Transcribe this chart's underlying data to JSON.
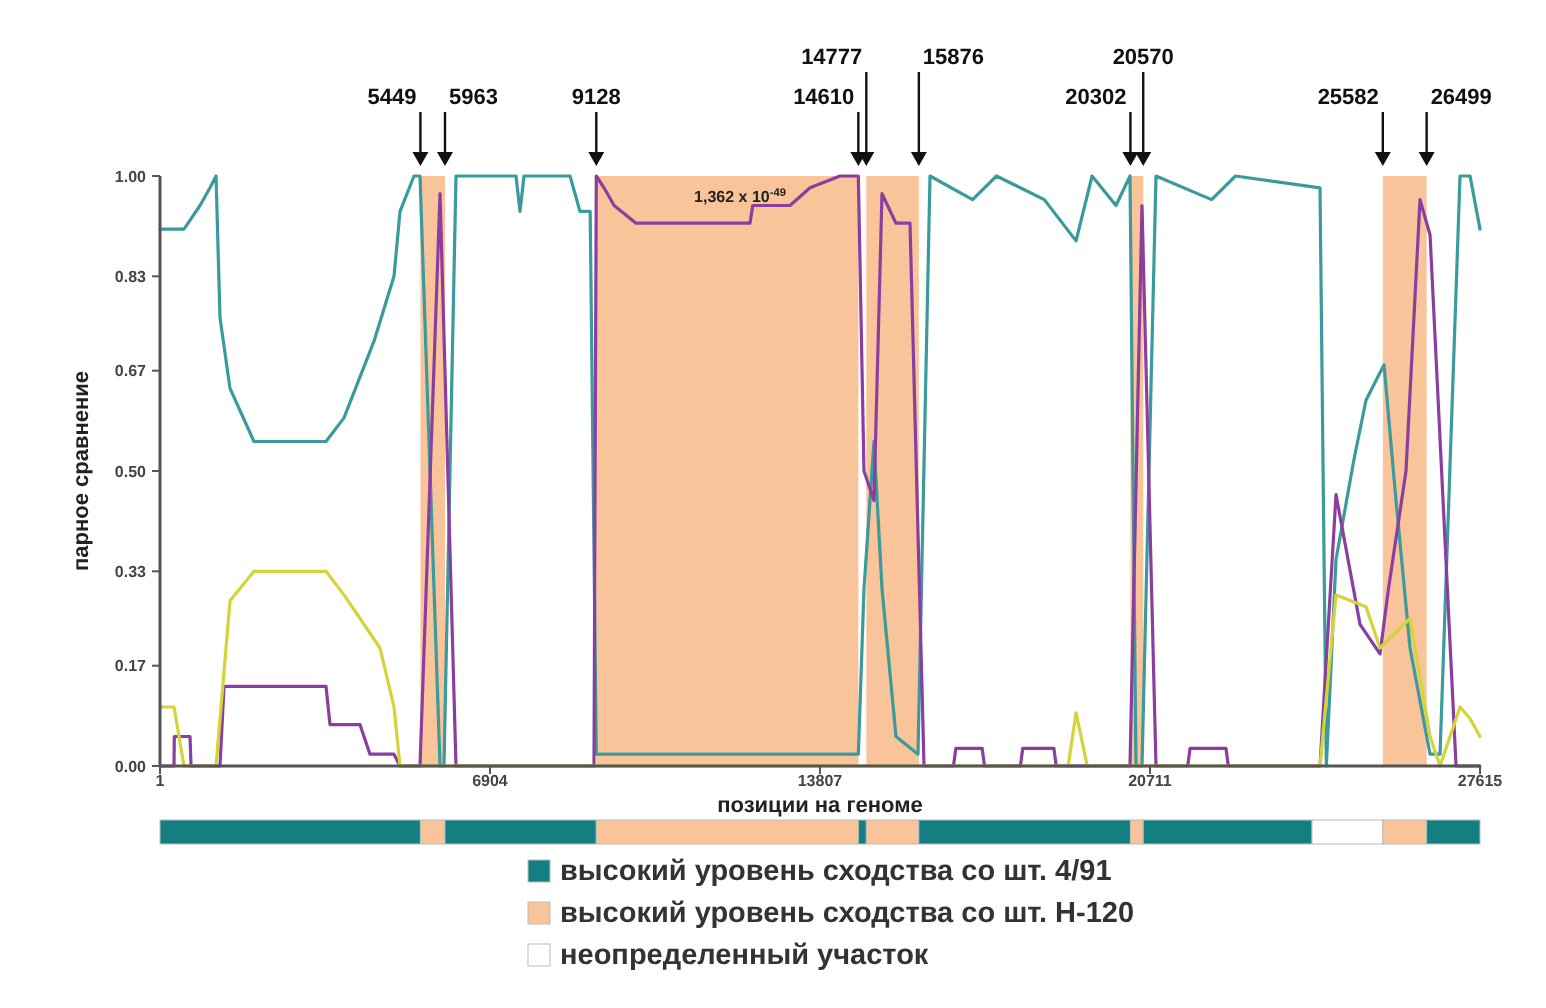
{
  "chart_data": [
    {
      "type": "line",
      "xlabel": "позиции на геноме",
      "ylabel": "парное сравнение",
      "xlim": [
        1,
        27615
      ],
      "xticks": [
        1,
        6904,
        13807,
        20711,
        27615
      ],
      "ylim": [
        0,
        1
      ],
      "yticks": [
        {
          "value": 0,
          "label": "0.00"
        },
        0.17,
        0.33,
        {
          "value": 0.5,
          "label": "0.50"
        },
        0.67,
        0.83,
        {
          "value": 1,
          "label": "1.00"
        }
      ],
      "series": [
        {
          "color": "#3a9a9c",
          "x": [
            1,
            503,
            838,
            1047,
            1173,
            1256,
            1465,
            1967,
            3474,
            3850,
            4478,
            4896,
            5022,
            5315,
            5440,
            5859,
            5942,
            6193,
            7448,
            7532,
            7616,
            8578,
            8787,
            9000,
            9128,
            12344,
            14610,
            14728,
            14937,
            15105,
            15398,
            15858,
            16109,
            17000,
            17500,
            18500,
            19164,
            19500,
            20000,
            20293,
            20418,
            20544,
            20837,
            22000,
            22500,
            24268,
            24400,
            24603,
            24979,
            25230,
            25607,
            25858,
            26151,
            26570,
            26779,
            27197,
            27407,
            27615
          ],
          "values": [
            0.91,
            0.91,
            0.95,
            0.98,
            1.0,
            0.76,
            0.64,
            0.55,
            0.55,
            0.59,
            0.72,
            0.83,
            0.94,
            1.0,
            1.0,
            0.0,
            0.0,
            1.0,
            1.0,
            0.94,
            1.0,
            1.0,
            0.94,
            0.94,
            0.02,
            0.02,
            0.02,
            0.3,
            0.55,
            0.3,
            0.05,
            0.02,
            1.0,
            0.96,
            1.0,
            0.96,
            0.89,
            1.0,
            0.95,
            1.0,
            0.0,
            0.0,
            1.0,
            0.96,
            1.0,
            0.98,
            0.0,
            0.35,
            0.52,
            0.62,
            0.68,
            0.45,
            0.2,
            0.02,
            0.02,
            1.0,
            1.0,
            0.91
          ]
        },
        {
          "color": "#8a3fa0",
          "x": [
            1,
            294,
            300,
            629,
            650,
            1256,
            1340,
            3474,
            3557,
            4185,
            4394,
            4896,
            5022,
            5440,
            5859,
            6193,
            9080,
            9128,
            9290,
            9500,
            9960,
            12344,
            12400,
            13181,
            13600,
            14227,
            14610,
            14728,
            14937,
            15105,
            15398,
            15691,
            15984,
            16600,
            16650,
            17200,
            17250,
            18000,
            18050,
            18700,
            18750,
            20293,
            20544,
            20837,
            21500,
            21550,
            22300,
            22350,
            24268,
            24603,
            25105,
            25523,
            25700,
            26067,
            26360,
            26570,
            27114,
            27615
          ],
          "values": [
            0,
            0,
            0.05,
            0.05,
            0,
            0,
            0.135,
            0.135,
            0.07,
            0.07,
            0.02,
            0.02,
            0,
            0,
            0.97,
            0,
            0,
            1.0,
            0.98,
            0.95,
            0.92,
            0.92,
            0.95,
            0.95,
            0.98,
            1.0,
            1.0,
            0.5,
            0.45,
            0.97,
            0.92,
            0.92,
            0,
            0,
            0.03,
            0.03,
            0,
            0,
            0.03,
            0.03,
            0,
            0,
            0.95,
            0,
            0,
            0.03,
            0.03,
            0,
            0,
            0.46,
            0.24,
            0.19,
            0.3,
            0.5,
            0.96,
            0.9,
            0,
            0
          ]
        },
        {
          "color": "#d4d43a",
          "x": [
            1,
            294,
            503,
            1173,
            1465,
            1967,
            3474,
            3850,
            4185,
            4603,
            4896,
            5022,
            19000,
            19164,
            19400,
            24268,
            24603,
            25230,
            25523,
            26151,
            26570,
            26779,
            27197,
            27407,
            27615
          ],
          "values": [
            0.1,
            0.1,
            0,
            0,
            0.28,
            0.33,
            0.33,
            0.29,
            0.25,
            0.2,
            0.1,
            0,
            0,
            0.09,
            0,
            0,
            0.29,
            0.27,
            0.2,
            0.25,
            0.05,
            0,
            0.1,
            0.08,
            0.05
          ]
        }
      ],
      "bands": [
        {
          "axis": "x",
          "from": 5449,
          "to": 5963,
          "color": "#f9c49a"
        },
        {
          "axis": "x",
          "from": 9128,
          "to": 14610,
          "color": "#f9c49a"
        },
        {
          "axis": "x",
          "from": 14777,
          "to": 15876,
          "color": "#f9c49a"
        },
        {
          "axis": "x",
          "from": 20302,
          "to": 20570,
          "color": "#f9c49a"
        },
        {
          "axis": "x",
          "from": 25582,
          "to": 26499,
          "color": "#f9c49a"
        }
      ],
      "ref_lines": [
        {
          "axis": "x",
          "value": 5449,
          "label": "5449"
        },
        {
          "axis": "x",
          "value": 5963,
          "label": "5963"
        },
        {
          "axis": "x",
          "value": 9128,
          "label": "9128"
        },
        {
          "axis": "x",
          "value": 14610,
          "label": "14610"
        },
        {
          "axis": "x",
          "value": 14777,
          "label": "14777"
        },
        {
          "axis": "x",
          "value": 15876,
          "label": "15876"
        },
        {
          "axis": "x",
          "value": 20302,
          "label": "20302"
        },
        {
          "axis": "x",
          "value": 20570,
          "label": "20570"
        },
        {
          "axis": "x",
          "value": 25582,
          "label": "25582"
        },
        {
          "axis": "x",
          "value": 26499,
          "label": "26499"
        }
      ],
      "annotations": [
        "1,362 x 10$^{-49}$"
      ]
    },
    {
      "type": "bar",
      "orientation": "horizontal",
      "stacked": true,
      "categories": [
        null
      ],
      "xlim": [
        1,
        27615
      ],
      "tick_labels": false,
      "legend": "bottom",
      "series": [
        {
          "name": "высокий уровень сходства со шт. 4/91",
          "color": "#137f80",
          "values": [
            5448
          ]
        },
        {
          "name": "высокий уровень сходства со шт. H-120",
          "color": "#f9c49a",
          "values": [
            514
          ]
        },
        {
          "color": "#137f80",
          "values": [
            3165
          ]
        },
        {
          "color": "#f9c49a",
          "values": [
            5482
          ]
        },
        {
          "color": "#137f80",
          "values": [
            167
          ]
        },
        {
          "color": "#f9c49a",
          "values": [
            1099
          ]
        },
        {
          "color": "#137f80",
          "values": [
            4426
          ]
        },
        {
          "color": "#f9c49a",
          "values": [
            268
          ]
        },
        {
          "color": "#137f80",
          "values": [
            3530
          ]
        },
        {
          "name": "неопределенный участок",
          "color": "#ffffff",
          "values": [
            1482
          ]
        },
        {
          "color": "#f9c49a",
          "values": [
            917
          ]
        },
        {
          "color": "#137f80",
          "values": [
            1116
          ]
        }
      ]
    }
  ]
}
